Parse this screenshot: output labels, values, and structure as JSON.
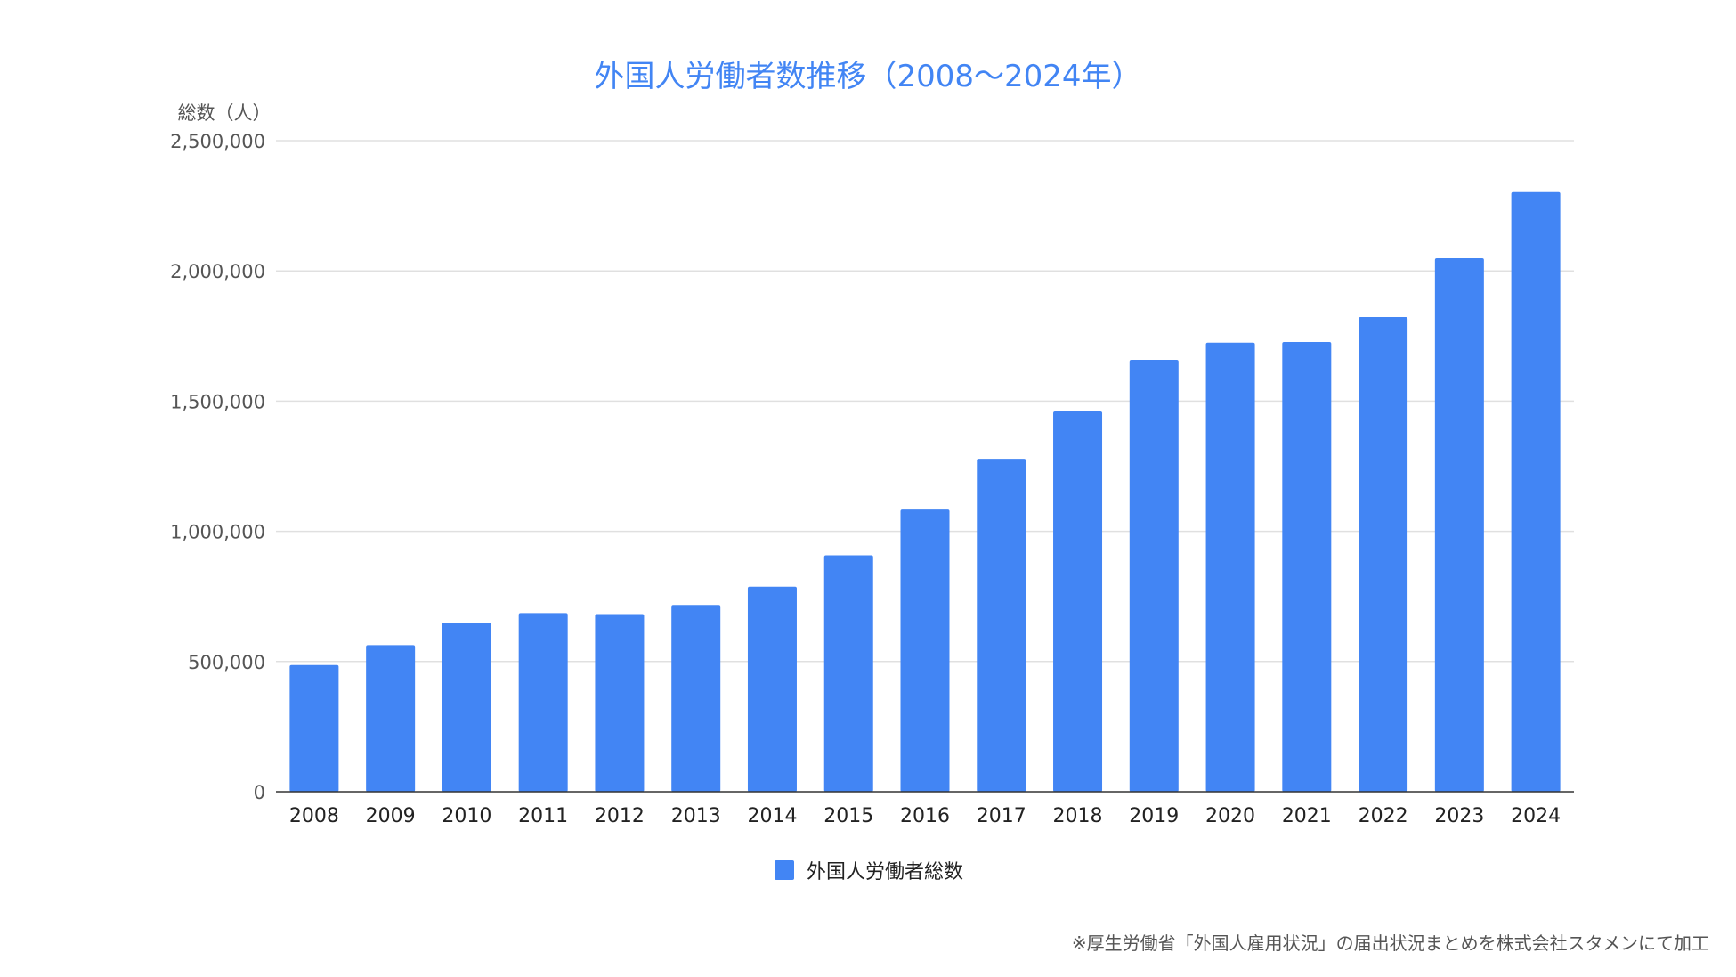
{
  "chart_data": {
    "type": "bar",
    "title": "外国人労働者数推移（2008〜2024年）",
    "ylabel": "総数（人）",
    "xlabel": "",
    "categories": [
      "2008",
      "2009",
      "2010",
      "2011",
      "2012",
      "2013",
      "2014",
      "2015",
      "2016",
      "2017",
      "2018",
      "2019",
      "2020",
      "2021",
      "2022",
      "2023",
      "2024"
    ],
    "series": [
      {
        "name": "外国人労働者総数",
        "color": "#4285f4",
        "values": [
          486398,
          562818,
          649982,
          686246,
          682450,
          717504,
          787627,
          907896,
          1083769,
          1278670,
          1460463,
          1658804,
          1724328,
          1727221,
          1822725,
          2048675,
          2302587
        ]
      }
    ],
    "ylim": [
      0,
      2500000
    ],
    "yticks": [
      0,
      500000,
      1000000,
      1500000,
      2000000,
      2500000
    ],
    "ytick_labels": [
      "0",
      "500,000",
      "1,000,000",
      "1,500,000",
      "2,000,000",
      "2,500,000"
    ],
    "grid": true,
    "legend_position": "bottom"
  },
  "footnote": "※厚生労働省「外国人雇用状況」の届出状況まとめを株式会社スタメンにて加工"
}
